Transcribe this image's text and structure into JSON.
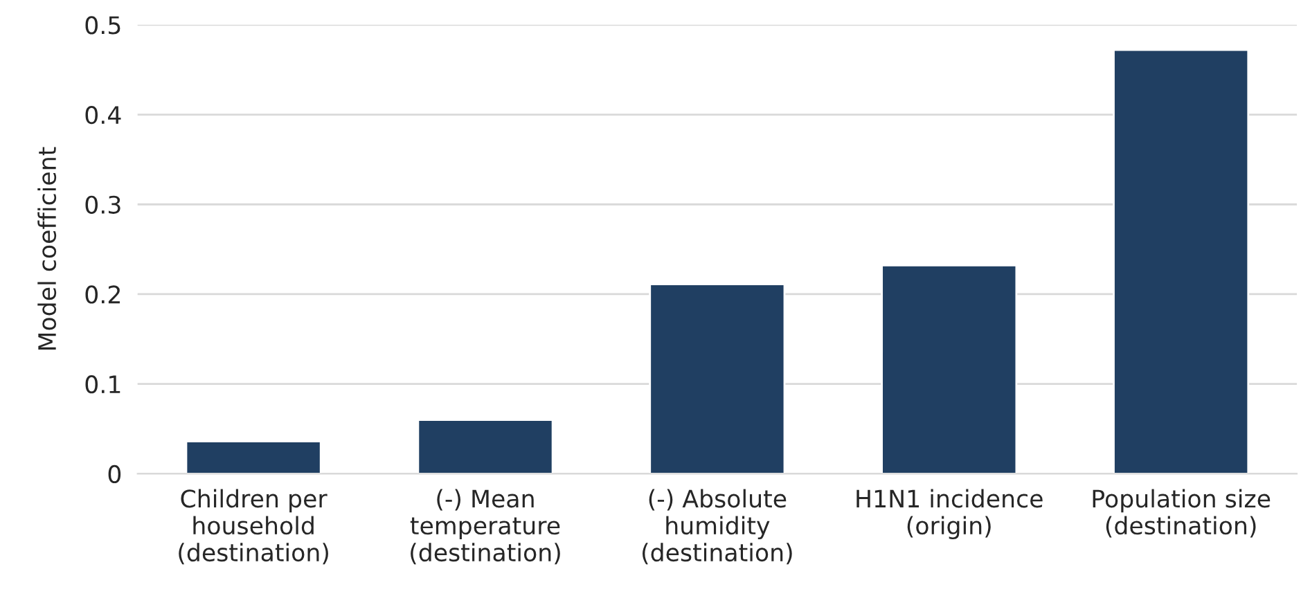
{
  "chart_data": {
    "type": "bar",
    "ylabel": "Model coefficient",
    "categories": [
      "Children per\nhousehold\n(destination)",
      "(-) Mean\ntemperature\n(destination)",
      "(-) Absolute\nhumidity\n(destination)",
      "H1N1 incidence\n(origin)",
      "Population size\n(destination)"
    ],
    "values": [
      0.036,
      0.06,
      0.211,
      0.232,
      0.472
    ],
    "color": "#203f62",
    "ylim": [
      0,
      0.5
    ],
    "yticks": [
      {
        "value": 0,
        "label": "0"
      },
      0.1,
      0.2,
      0.3,
      0.4,
      0.5
    ],
    "grid": "y"
  }
}
